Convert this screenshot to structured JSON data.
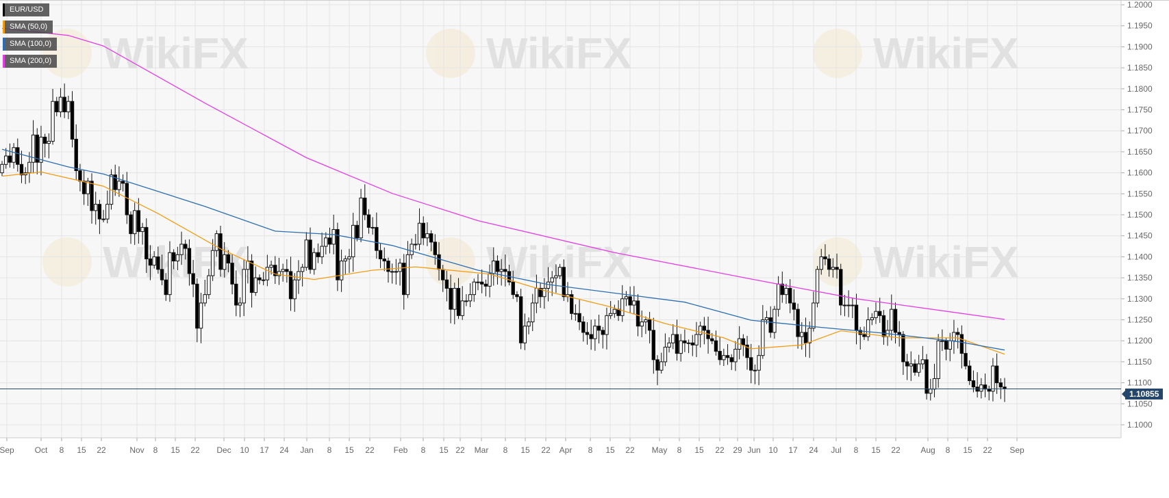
{
  "chart_data": {
    "type": "candlestick",
    "title": "EUR/USD",
    "ylim": [
      1.0975,
      1.2012
    ],
    "grid": true,
    "legend_placement": "top-left",
    "legend": [
      {
        "label": "EUR/USD",
        "color": "#000000"
      },
      {
        "label": "SMA (50,0)",
        "color": "#f39c12"
      },
      {
        "label": "SMA (100,0)",
        "color": "#2a6db0"
      },
      {
        "label": "SMA (200,0)",
        "color": "#e63ce6"
      }
    ],
    "y_ticks": [
      "1.2000",
      "1.1950",
      "1.1900",
      "1.1850",
      "1.1800",
      "1.1750",
      "1.1700",
      "1.1650",
      "1.1600",
      "1.1550",
      "1.1500",
      "1.1450",
      "1.1400",
      "1.1350",
      "1.1300",
      "1.1250",
      "1.1200",
      "1.1150",
      "1.1100",
      "1.1050",
      "1.1000"
    ],
    "x_ticks": [
      "Sep",
      "Oct",
      "8",
      "15",
      "22",
      "Nov",
      "8",
      "15",
      "22",
      "Dec",
      "10",
      "17",
      "24",
      "Jan",
      "8",
      "15",
      "22",
      "Feb",
      "8",
      "15",
      "22",
      "Mar",
      "8",
      "15",
      "22",
      "Apr",
      "8",
      "15",
      "22",
      "May",
      "8",
      "15",
      "22",
      "29",
      "Jun",
      "10",
      "17",
      "24",
      "Jul",
      "8",
      "15",
      "22",
      "Aug",
      "8",
      "15",
      "22",
      "Sep"
    ],
    "current_price": "1.10855",
    "first_open": 1.16,
    "closes": [
      1.162,
      1.164,
      1.1625,
      1.166,
      1.162,
      1.1595,
      1.16,
      1.1625,
      1.169,
      1.1625,
      1.1685,
      1.167,
      1.1675,
      1.177,
      1.1745,
      1.178,
      1.1745,
      1.177,
      1.168,
      1.1605,
      1.158,
      1.155,
      1.158,
      1.151,
      1.1525,
      1.149,
      1.149,
      1.1525,
      1.1595,
      1.156,
      1.158,
      1.1575,
      1.15,
      1.1455,
      1.151,
      1.146,
      1.147,
      1.1395,
      1.138,
      1.14,
      1.137,
      1.1345,
      1.131,
      1.141,
      1.139,
      1.1405,
      1.143,
      1.142,
      1.136,
      1.1335,
      1.123,
      1.129,
      1.131,
      1.1355,
      1.1415,
      1.1455,
      1.137,
      1.1405,
      1.1385,
      1.1335,
      1.1285,
      1.129,
      1.137,
      1.139,
      1.1315,
      1.135,
      1.1345,
      1.1345,
      1.1375,
      1.138,
      1.1355,
      1.1365,
      1.137,
      1.1365,
      1.13,
      1.1345,
      1.1365,
      1.1375,
      1.144,
      1.137,
      1.141,
      1.14,
      1.1425,
      1.1445,
      1.143,
      1.1465,
      1.1345,
      1.139,
      1.1395,
      1.14,
      1.1475,
      1.1445,
      1.154,
      1.15,
      1.147,
      1.147,
      1.1415,
      1.1395,
      1.139,
      1.1365,
      1.1365,
      1.1365,
      1.1385,
      1.131,
      1.1405,
      1.143,
      1.143,
      1.148,
      1.1445,
      1.1455,
      1.1435,
      1.1405,
      1.137,
      1.1345,
      1.1325,
      1.1275,
      1.1325,
      1.126,
      1.1295,
      1.1295,
      1.131,
      1.134,
      1.134,
      1.1335,
      1.133,
      1.136,
      1.139,
      1.1365,
      1.137,
      1.1365,
      1.134,
      1.131,
      1.1305,
      1.1195,
      1.1235,
      1.1245,
      1.129,
      1.1325,
      1.1305,
      1.1325,
      1.134,
      1.135,
      1.1355,
      1.1375,
      1.1305,
      1.131,
      1.1265,
      1.1265,
      1.1245,
      1.122,
      1.1215,
      1.1205,
      1.1235,
      1.1225,
      1.1215,
      1.126,
      1.1265,
      1.1275,
      1.126,
      1.13,
      1.1305,
      1.1285,
      1.1295,
      1.1235,
      1.1245,
      1.125,
      1.1225,
      1.1155,
      1.113,
      1.115,
      1.1185,
      1.1195,
      1.1215,
      1.117,
      1.12,
      1.1195,
      1.1195,
      1.119,
      1.1215,
      1.1235,
      1.1225,
      1.1205,
      1.12,
      1.1175,
      1.1155,
      1.1165,
      1.116,
      1.115,
      1.118,
      1.1205,
      1.119,
      1.116,
      1.113,
      1.113,
      1.1165,
      1.125,
      1.1255,
      1.122,
      1.1275,
      1.1335,
      1.131,
      1.1325,
      1.129,
      1.1275,
      1.121,
      1.122,
      1.1195,
      1.123,
      1.129,
      1.137,
      1.14,
      1.1395,
      1.137,
      1.1375,
      1.137,
      1.1285,
      1.1285,
      1.1285,
      1.1285,
      1.1225,
      1.1215,
      1.121,
      1.125,
      1.1255,
      1.127,
      1.126,
      1.121,
      1.1225,
      1.1275,
      1.122,
      1.1215,
      1.115,
      1.114,
      1.1145,
      1.1125,
      1.1145,
      1.1155,
      1.1075,
      1.1085,
      1.111,
      1.12,
      1.12,
      1.118,
      1.12,
      1.122,
      1.1215,
      1.117,
      1.114,
      1.1105,
      1.109,
      1.108,
      1.1095,
      1.1085,
      1.108,
      1.114,
      1.11,
      1.109,
      1.10855
    ],
    "sma": [
      {
        "name": "SMA (50,0)",
        "color": "#f39c12",
        "points": [
          [
            0,
            1.1592
          ],
          [
            10,
            1.1602
          ],
          [
            26,
            1.1568
          ],
          [
            40,
            1.1503
          ],
          [
            56,
            1.1419
          ],
          [
            70,
            1.1359
          ],
          [
            80,
            1.1346
          ],
          [
            95,
            1.1368
          ],
          [
            106,
            1.1376
          ],
          [
            125,
            1.1359
          ],
          [
            140,
            1.1317
          ],
          [
            155,
            1.1283
          ],
          [
            170,
            1.1241
          ],
          [
            185,
            1.1207
          ],
          [
            192,
            1.1181
          ],
          [
            205,
            1.119
          ],
          [
            215,
            1.1224
          ],
          [
            230,
            1.1207
          ],
          [
            245,
            1.1207
          ],
          [
            257,
            1.1168
          ]
        ]
      },
      {
        "name": "SMA (100,0)",
        "color": "#2a6db0",
        "points": [
          [
            0,
            1.1656
          ],
          [
            17,
            1.1614
          ],
          [
            26,
            1.1597
          ],
          [
            52,
            1.152
          ],
          [
            70,
            1.1461
          ],
          [
            85,
            1.1453
          ],
          [
            100,
            1.1427
          ],
          [
            122,
            1.1368
          ],
          [
            140,
            1.1334
          ],
          [
            175,
            1.1292
          ],
          [
            192,
            1.1249
          ],
          [
            210,
            1.1232
          ],
          [
            225,
            1.1219
          ],
          [
            245,
            1.1198
          ],
          [
            257,
            1.1178
          ]
        ]
      },
      {
        "name": "SMA (200,0)",
        "color": "#e63ce6",
        "points": [
          [
            0,
            1.1944
          ],
          [
            17,
            1.1927
          ],
          [
            26,
            1.1902
          ],
          [
            52,
            1.1766
          ],
          [
            78,
            1.1636
          ],
          [
            100,
            1.1551
          ],
          [
            122,
            1.1486
          ],
          [
            157,
            1.141
          ],
          [
            192,
            1.1347
          ],
          [
            219,
            1.13
          ],
          [
            257,
            1.1251
          ]
        ]
      }
    ],
    "watermark": "WikiFX"
  }
}
